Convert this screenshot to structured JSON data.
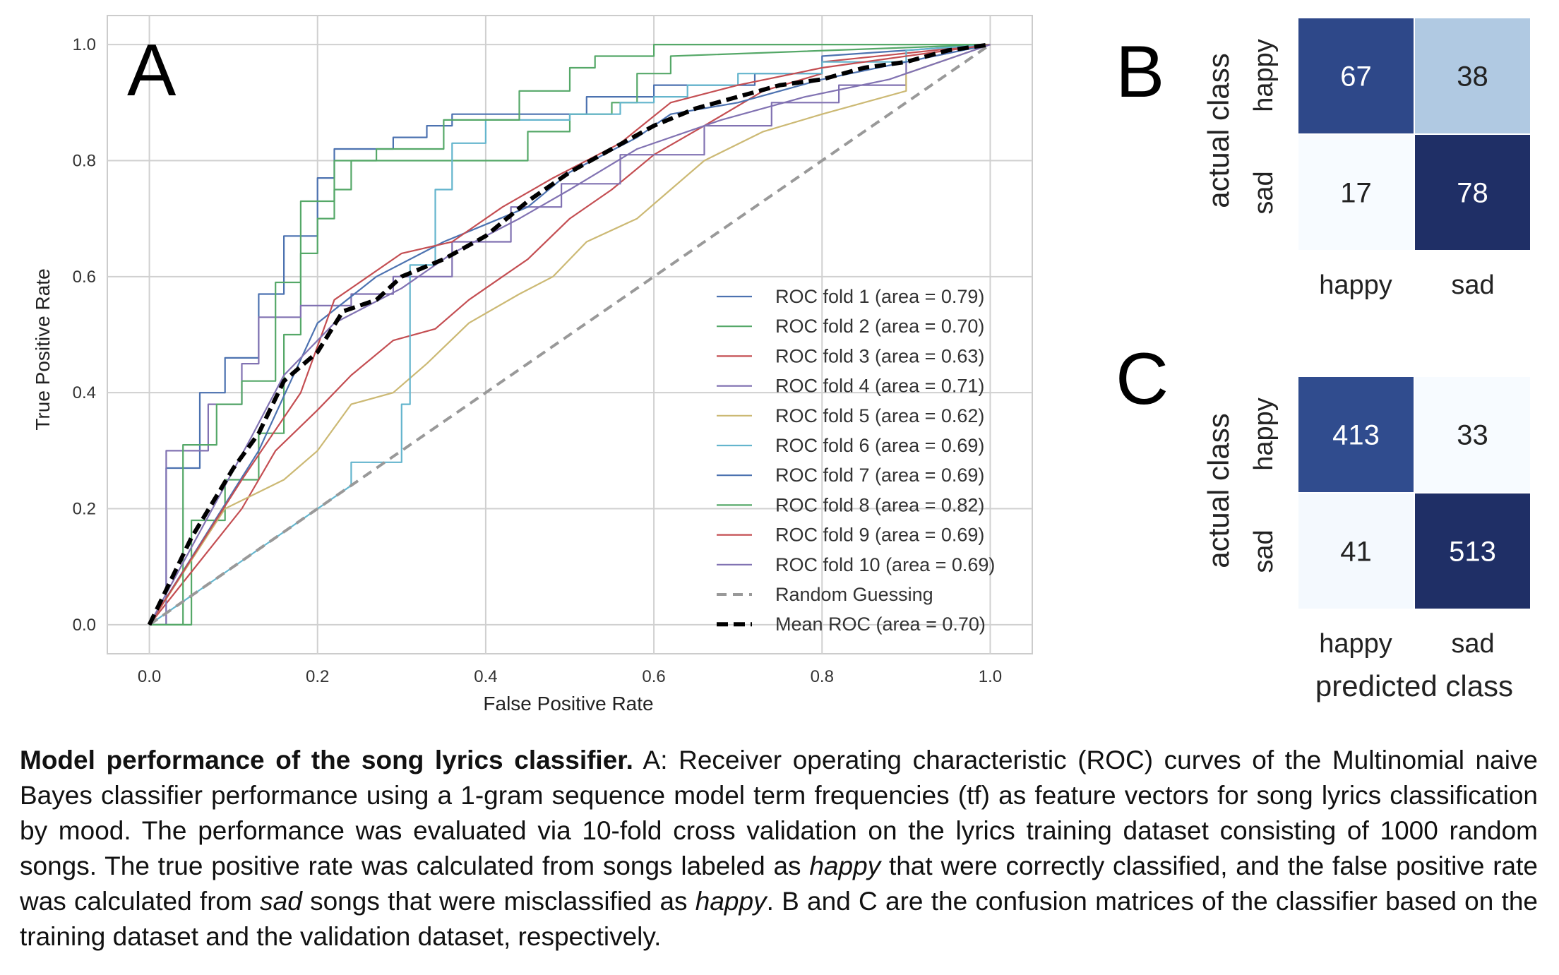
{
  "chart_data": [
    {
      "panel": "A",
      "type": "line",
      "xlabel": "False Positive Rate",
      "ylabel": "True Positive Rate",
      "xlim": [
        -0.05,
        1.05
      ],
      "ylim": [
        -0.05,
        1.05
      ],
      "xticks": [
        "0.0",
        "0.2",
        "0.4",
        "0.6",
        "0.8",
        "1.0"
      ],
      "yticks": [
        "0.0",
        "0.2",
        "0.4",
        "0.6",
        "0.8",
        "1.0"
      ],
      "grid": true,
      "legend_position": "lower-right",
      "series": [
        {
          "name": "ROC fold 1 (area = 0.79)",
          "color": "#4c72b0",
          "style": "solid",
          "x": [
            0,
            0.02,
            0.02,
            0.06,
            0.06,
            0.09,
            0.09,
            0.13,
            0.13,
            0.16,
            0.16,
            0.2,
            0.2,
            0.22,
            0.22,
            0.29,
            0.29,
            0.33,
            0.33,
            0.36,
            0.36,
            0.4,
            0.4,
            0.52,
            0.52,
            0.6,
            0.6,
            0.72,
            0.72,
            0.8,
            0.8,
            1.0
          ],
          "y": [
            0,
            0,
            0.27,
            0.27,
            0.4,
            0.4,
            0.46,
            0.46,
            0.57,
            0.57,
            0.67,
            0.67,
            0.77,
            0.77,
            0.82,
            0.82,
            0.84,
            0.84,
            0.86,
            0.86,
            0.88,
            0.88,
            0.88,
            0.88,
            0.91,
            0.91,
            0.93,
            0.93,
            0.95,
            0.95,
            0.98,
            1.0
          ]
        },
        {
          "name": "ROC fold 2 (area = 0.70)",
          "color": "#55a868",
          "style": "solid",
          "x": [
            0,
            0.05,
            0.05,
            0.09,
            0.09,
            0.13,
            0.13,
            0.16,
            0.16,
            0.18,
            0.18,
            0.2,
            0.2,
            0.22,
            0.22,
            0.24,
            0.24,
            0.27,
            0.27,
            0.33,
            0.33,
            0.45,
            0.45,
            0.5,
            0.5,
            0.55,
            0.55,
            0.58,
            0.58,
            0.62,
            0.62,
            1.0
          ],
          "y": [
            0,
            0,
            0.18,
            0.18,
            0.25,
            0.25,
            0.33,
            0.33,
            0.5,
            0.5,
            0.64,
            0.64,
            0.7,
            0.7,
            0.75,
            0.75,
            0.8,
            0.8,
            0.8,
            0.8,
            0.8,
            0.8,
            0.85,
            0.85,
            0.88,
            0.88,
            0.9,
            0.9,
            0.95,
            0.95,
            0.98,
            1.0
          ]
        },
        {
          "name": "ROC fold 3 (area = 0.63)",
          "color": "#c44e52",
          "style": "solid",
          "x": [
            0,
            0.11,
            0.11,
            0.15,
            0.15,
            0.2,
            0.2,
            0.24,
            0.24,
            0.29,
            0.29,
            0.34,
            0.34,
            0.38,
            0.38,
            0.42,
            0.42,
            0.45,
            0.45,
            0.5,
            0.5,
            0.55,
            0.55,
            0.6,
            0.6,
            0.66,
            0.66,
            0.73,
            0.73,
            0.8,
            0.8,
            1.0
          ],
          "y": [
            0,
            0.2,
            0.2,
            0.3,
            0.3,
            0.37,
            0.37,
            0.43,
            0.43,
            0.49,
            0.49,
            0.51,
            0.51,
            0.56,
            0.56,
            0.6,
            0.6,
            0.63,
            0.63,
            0.7,
            0.7,
            0.75,
            0.75,
            0.81,
            0.81,
            0.86,
            0.86,
            0.92,
            0.92,
            0.95,
            0.97,
            1.0
          ]
        },
        {
          "name": "ROC fold 4 (area = 0.71)",
          "color": "#8172b2",
          "style": "solid",
          "x": [
            0,
            0.02,
            0.02,
            0.07,
            0.07,
            0.11,
            0.11,
            0.13,
            0.13,
            0.18,
            0.18,
            0.24,
            0.24,
            0.29,
            0.29,
            0.36,
            0.36,
            0.43,
            0.43,
            0.49,
            0.49,
            0.56,
            0.56,
            0.66,
            0.66,
            0.74,
            0.74,
            0.82,
            0.82,
            0.9,
            0.9,
            1.0
          ],
          "y": [
            0,
            0,
            0.3,
            0.3,
            0.38,
            0.38,
            0.45,
            0.45,
            0.53,
            0.53,
            0.55,
            0.55,
            0.57,
            0.57,
            0.6,
            0.6,
            0.66,
            0.66,
            0.72,
            0.72,
            0.76,
            0.76,
            0.81,
            0.81,
            0.86,
            0.86,
            0.9,
            0.9,
            0.93,
            0.93,
            0.97,
            1.0
          ]
        },
        {
          "name": "ROC fold 5 (area = 0.62)",
          "color": "#ccb974",
          "style": "solid",
          "x": [
            0,
            0.09,
            0.09,
            0.16,
            0.16,
            0.2,
            0.2,
            0.24,
            0.24,
            0.29,
            0.29,
            0.33,
            0.33,
            0.38,
            0.38,
            0.44,
            0.44,
            0.48,
            0.48,
            0.52,
            0.52,
            0.58,
            0.58,
            0.62,
            0.62,
            0.66,
            0.66,
            0.73,
            0.73,
            0.8,
            0.8,
            0.9,
            0.9,
            1.0
          ],
          "y": [
            0,
            0.2,
            0.2,
            0.25,
            0.25,
            0.3,
            0.3,
            0.38,
            0.38,
            0.4,
            0.4,
            0.45,
            0.45,
            0.52,
            0.52,
            0.57,
            0.57,
            0.6,
            0.6,
            0.66,
            0.66,
            0.7,
            0.7,
            0.75,
            0.75,
            0.8,
            0.8,
            0.85,
            0.85,
            0.88,
            0.88,
            0.92,
            0.95,
            1.0
          ]
        },
        {
          "name": "ROC fold 6 (area = 0.69)",
          "color": "#64b5cd",
          "style": "solid",
          "x": [
            0,
            0.24,
            0.24,
            0.3,
            0.3,
            0.31,
            0.31,
            0.34,
            0.34,
            0.36,
            0.36,
            0.4,
            0.4,
            0.5,
            0.5,
            0.56,
            0.56,
            0.6,
            0.6,
            0.64,
            0.64,
            0.7,
            0.7,
            0.8,
            0.8,
            0.9,
            0.9,
            1.0
          ],
          "y": [
            0,
            0.24,
            0.28,
            0.28,
            0.38,
            0.38,
            0.62,
            0.62,
            0.75,
            0.75,
            0.83,
            0.83,
            0.87,
            0.87,
            0.88,
            0.88,
            0.9,
            0.9,
            0.91,
            0.91,
            0.93,
            0.93,
            0.95,
            0.95,
            0.97,
            0.97,
            0.99,
            1.0
          ]
        },
        {
          "name": "ROC fold 7 (area = 0.69)",
          "color": "#4c72b0",
          "style": "solid",
          "x": [
            0,
            0.13,
            0.13,
            0.2,
            0.2,
            0.27,
            0.27,
            0.35,
            0.35,
            0.45,
            0.45,
            0.5,
            0.5,
            0.58,
            0.58,
            0.62,
            0.62,
            0.7,
            0.7,
            0.8,
            0.8,
            0.9,
            0.9,
            1.0
          ],
          "y": [
            0,
            0.3,
            0.3,
            0.52,
            0.52,
            0.6,
            0.6,
            0.66,
            0.66,
            0.72,
            0.72,
            0.78,
            0.78,
            0.84,
            0.84,
            0.88,
            0.88,
            0.9,
            0.9,
            0.94,
            0.94,
            0.97,
            0.97,
            1.0
          ]
        },
        {
          "name": "ROC fold 8 (area = 0.82)",
          "color": "#55a868",
          "style": "solid",
          "x": [
            0,
            0.04,
            0.04,
            0.08,
            0.08,
            0.11,
            0.11,
            0.15,
            0.15,
            0.18,
            0.18,
            0.22,
            0.22,
            0.27,
            0.27,
            0.35,
            0.35,
            0.44,
            0.44,
            0.5,
            0.5,
            0.53,
            0.53,
            0.56,
            0.56,
            0.6,
            0.6,
            1.0
          ],
          "y": [
            0,
            0,
            0.31,
            0.31,
            0.38,
            0.38,
            0.42,
            0.42,
            0.59,
            0.59,
            0.73,
            0.73,
            0.8,
            0.8,
            0.82,
            0.82,
            0.87,
            0.87,
            0.92,
            0.92,
            0.96,
            0.96,
            0.98,
            0.98,
            0.98,
            0.98,
            1.0,
            1.0
          ]
        },
        {
          "name": "ROC fold 9 (area = 0.69)",
          "color": "#c44e52",
          "style": "solid",
          "x": [
            0,
            0.11,
            0.11,
            0.18,
            0.18,
            0.22,
            0.22,
            0.3,
            0.3,
            0.36,
            0.36,
            0.42,
            0.42,
            0.48,
            0.48,
            0.56,
            0.56,
            0.62,
            0.62,
            0.7,
            0.7,
            0.8,
            0.8,
            1.0
          ],
          "y": [
            0,
            0.25,
            0.25,
            0.4,
            0.4,
            0.56,
            0.56,
            0.64,
            0.64,
            0.66,
            0.66,
            0.72,
            0.72,
            0.77,
            0.77,
            0.83,
            0.83,
            0.9,
            0.9,
            0.93,
            0.93,
            0.96,
            0.96,
            1.0
          ]
        },
        {
          "name": "ROC fold 10 (area = 0.69)",
          "color": "#8172b2",
          "style": "solid",
          "x": [
            0,
            0.12,
            0.12,
            0.16,
            0.16,
            0.22,
            0.22,
            0.3,
            0.3,
            0.36,
            0.36,
            0.44,
            0.44,
            0.5,
            0.5,
            0.58,
            0.58,
            0.68,
            0.68,
            0.78,
            0.78,
            0.88,
            0.88,
            1.0
          ],
          "y": [
            0,
            0.32,
            0.32,
            0.43,
            0.43,
            0.52,
            0.52,
            0.58,
            0.58,
            0.64,
            0.64,
            0.7,
            0.7,
            0.75,
            0.75,
            0.82,
            0.82,
            0.87,
            0.87,
            0.91,
            0.91,
            0.94,
            0.94,
            1.0
          ]
        },
        {
          "name": "Random Guessing",
          "color": "#999999",
          "style": "dashed",
          "x": [
            0,
            1
          ],
          "y": [
            0,
            1
          ]
        },
        {
          "name": "Mean ROC (area = 0.70)",
          "color": "#000000",
          "style": "dashed-bold",
          "x": [
            0,
            0.05,
            0.1,
            0.13,
            0.16,
            0.2,
            0.23,
            0.27,
            0.3,
            0.35,
            0.4,
            0.45,
            0.5,
            0.55,
            0.6,
            0.65,
            0.7,
            0.75,
            0.8,
            0.85,
            0.9,
            0.95,
            1.0
          ],
          "y": [
            0,
            0.15,
            0.27,
            0.33,
            0.42,
            0.47,
            0.54,
            0.56,
            0.6,
            0.63,
            0.67,
            0.73,
            0.78,
            0.82,
            0.86,
            0.89,
            0.91,
            0.93,
            0.94,
            0.96,
            0.97,
            0.99,
            1.0
          ]
        }
      ]
    },
    {
      "panel": "B",
      "type": "heatmap",
      "xlabel": "",
      "ylabel": "actual class",
      "row_labels": [
        "happy",
        "sad"
      ],
      "col_labels": [
        "happy",
        "sad"
      ],
      "values": [
        [
          67,
          38
        ],
        [
          17,
          78
        ]
      ]
    },
    {
      "panel": "C",
      "type": "heatmap",
      "xlabel": "predicted class",
      "ylabel": "actual class",
      "row_labels": [
        "happy",
        "sad"
      ],
      "col_labels": [
        "happy",
        "sad"
      ],
      "values": [
        [
          413,
          33
        ],
        [
          41,
          513
        ]
      ]
    }
  ],
  "panel_labels": {
    "a": "A",
    "b": "B",
    "c": "C"
  },
  "caption": {
    "title": "Model performance of the song lyrics classifier.",
    "s1": " A: Receiver operating characteristic (ROC) curves of the Multinomial naive Bayes classifier performance using a 1-gram sequence model term frequencies (tf) as feature vectors for song lyrics classification by mood. The performance was  evaluated via 10-fold cross validation on the lyrics training dataset consisting of 1000 random songs. The true positive rate was calculated from songs labeled as ",
    "i1": "happy",
    "s2": " that were correctly classified, and the false positive rate was calculated from ",
    "i2": "sad",
    "s3": " songs that were misclassified as ",
    "i3": "happy",
    "s4": ". B and C are the confusion matrices of the classifier based on the training dataset and the validation dataset, respectively."
  }
}
